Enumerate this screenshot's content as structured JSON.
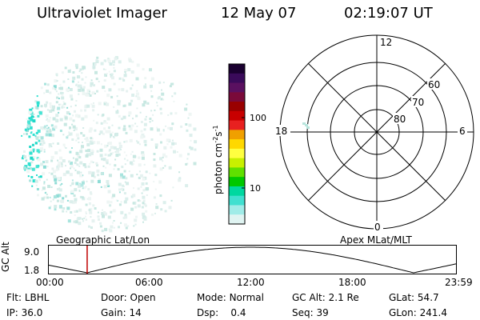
{
  "header": {
    "title": "Ultraviolet Imager",
    "date": "12 May 07",
    "time": "02:19:07 UT"
  },
  "colorbar": {
    "label": "photon cm-2s-1",
    "label_main": "photon cm",
    "label_sup1": "-2",
    "label_mid": "s",
    "label_sup2": "-1",
    "tick_100": "100",
    "tick_10": "10",
    "colors": [
      "#1a0030",
      "#3a0a5a",
      "#5a1060",
      "#7a0a3a",
      "#990000",
      "#c80000",
      "#e82020",
      "#f0a000",
      "#ffd800",
      "#ffff40",
      "#c8f000",
      "#60e000",
      "#00c800",
      "#00d8a0",
      "#40e0d0",
      "#a0ece8",
      "#e0f4f2"
    ]
  },
  "polar": {
    "label_12": "12",
    "label_6": "6",
    "label_18": "18",
    "label_0": "0",
    "lat_60": "60",
    "lat_70": "70",
    "lat_80": "80"
  },
  "timeline": {
    "left_title": "Geographic Lat/Lon",
    "right_title": "Apex MLat/MLT",
    "axis_label": "GC Alt",
    "y_top": "9.0",
    "y_bottom": "1.8",
    "ticks": [
      "00:00",
      "06:00",
      "12:00",
      "18:00",
      "23:59"
    ],
    "current_time_fraction": 0.095
  },
  "footer": {
    "row1": [
      {
        "label": "Flt:",
        "value": "LBHL"
      },
      {
        "label": "Door:",
        "value": "Open"
      },
      {
        "label": "Mode:",
        "value": "Normal"
      },
      {
        "label": "GC Alt:",
        "value": "2.1 Re"
      },
      {
        "label": "GLat:",
        "value": "54.7"
      }
    ],
    "row2": [
      {
        "label": "IP:",
        "value": "36.0"
      },
      {
        "label": "Gain:",
        "value": "14"
      },
      {
        "label": "Dsp:",
        "value": "0.4"
      },
      {
        "label": "Seq:",
        "value": "39"
      },
      {
        "label": "GLon:",
        "value": "241.4"
      }
    ]
  }
}
